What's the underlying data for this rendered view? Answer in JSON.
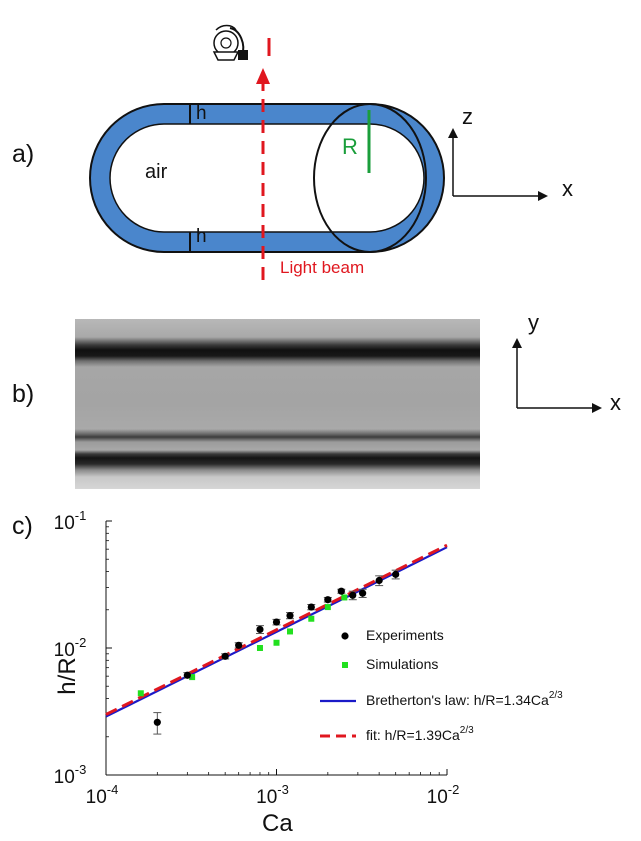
{
  "panels": {
    "a": {
      "label": "a)",
      "texts": {
        "air": "air",
        "h_top": "h",
        "h_bottom": "h",
        "R": "R",
        "light_beam": "Light beam"
      },
      "axes": {
        "vertical": "z",
        "horizontal": "x"
      },
      "colors": {
        "film": "#4a86cc",
        "beam": "#e0171f",
        "radius": "#1a9e3b"
      },
      "icons": [
        "camera-icon"
      ]
    },
    "b": {
      "label": "b)",
      "axes": {
        "vertical": "y",
        "horizontal": "x"
      }
    },
    "c": {
      "label": "c)"
    }
  },
  "chart_data": {
    "type": "scatter",
    "xscale": "log",
    "yscale": "log",
    "xlim": [
      0.0001,
      0.01
    ],
    "ylim": [
      0.001,
      0.1
    ],
    "xlabel": "Ca",
    "ylabel": "h/R",
    "grid": false,
    "legend_position": "lower-right",
    "x_ticks": [
      {
        "value": 0.0001,
        "base": "10",
        "exp": "-4"
      },
      {
        "value": 0.001,
        "base": "10",
        "exp": "-3"
      },
      {
        "value": 0.01,
        "base": "10",
        "exp": "-2"
      }
    ],
    "y_ticks": [
      {
        "value": 0.001,
        "base": "10",
        "exp": "-3"
      },
      {
        "value": 0.01,
        "base": "10",
        "exp": "-2"
      },
      {
        "value": 0.1,
        "base": "10",
        "exp": "-1"
      }
    ],
    "series": [
      {
        "name": "Experiments",
        "kind": "points",
        "color": "#000000",
        "points": [
          {
            "x": 0.0002,
            "y": 0.0026,
            "err": 0.0005
          },
          {
            "x": 0.0003,
            "y": 0.0061,
            "err": 0.0003
          },
          {
            "x": 0.0005,
            "y": 0.0086,
            "err": 0.0004
          },
          {
            "x": 0.0006,
            "y": 0.0105,
            "err": 0.0005
          },
          {
            "x": 0.0008,
            "y": 0.014,
            "err": 0.001
          },
          {
            "x": 0.001,
            "y": 0.016,
            "err": 0.0008
          },
          {
            "x": 0.0012,
            "y": 0.018,
            "err": 0.001
          },
          {
            "x": 0.0016,
            "y": 0.021,
            "err": 0.001
          },
          {
            "x": 0.002,
            "y": 0.024,
            "err": 0.001
          },
          {
            "x": 0.0024,
            "y": 0.028,
            "err": 0.001
          },
          {
            "x": 0.0028,
            "y": 0.026,
            "err": 0.002
          },
          {
            "x": 0.0032,
            "y": 0.027,
            "err": 0.002
          },
          {
            "x": 0.004,
            "y": 0.034,
            "err": 0.003
          },
          {
            "x": 0.005,
            "y": 0.038,
            "err": 0.003
          }
        ]
      },
      {
        "name": "Simulations",
        "kind": "points",
        "color": "#22e01f",
        "points": [
          {
            "x": 0.00016,
            "y": 0.0044
          },
          {
            "x": 0.00032,
            "y": 0.0059
          },
          {
            "x": 0.0008,
            "y": 0.01
          },
          {
            "x": 0.001,
            "y": 0.011
          },
          {
            "x": 0.0012,
            "y": 0.0135
          },
          {
            "x": 0.0016,
            "y": 0.017
          },
          {
            "x": 0.002,
            "y": 0.021
          },
          {
            "x": 0.0025,
            "y": 0.025
          }
        ]
      },
      {
        "name_prefix": "Bretherton's law: h/R=1.34Ca",
        "name_sup": "2/3",
        "kind": "line",
        "color": "#1a1ac8",
        "coefficient": 1.34,
        "exponent": 0.6667,
        "dashed": false
      },
      {
        "name_prefix": "fit: h/R=1.39Ca",
        "name_sup": "2/3",
        "kind": "line",
        "color": "#e0171f",
        "coefficient": 1.39,
        "exponent": 0.6667,
        "dashed": true
      }
    ]
  }
}
